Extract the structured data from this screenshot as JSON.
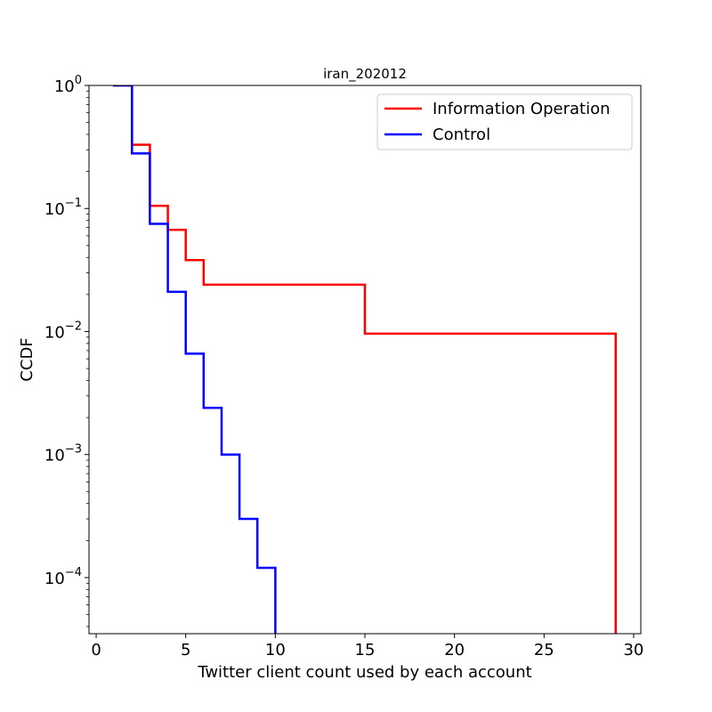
{
  "chart_data": {
    "type": "line",
    "title": "iran_202012",
    "xlabel": "Twitter client count used by each account",
    "ylabel": "CCDF",
    "yscale": "log",
    "xlim": [
      -0.4,
      30.4
    ],
    "ylim": [
      3.5e-05,
      1
    ],
    "xticks": [
      {
        "value": 0,
        "label": "0"
      },
      {
        "value": 5,
        "label": "5"
      },
      {
        "value": 10,
        "label": "10"
      },
      {
        "value": 15,
        "label": "15"
      },
      {
        "value": 20,
        "label": "20"
      },
      {
        "value": 25,
        "label": "25"
      },
      {
        "value": 30,
        "label": "30"
      }
    ],
    "yticks": [
      {
        "value": 1,
        "base": "10",
        "exp": "0"
      },
      {
        "value": 0.1,
        "base": "10",
        "exp": "−1"
      },
      {
        "value": 0.01,
        "base": "10",
        "exp": "−2"
      },
      {
        "value": 0.001,
        "base": "10",
        "exp": "−3"
      },
      {
        "value": 0.0001,
        "base": "10",
        "exp": "−4"
      }
    ],
    "legend": "top-right",
    "grid": false,
    "series": [
      {
        "name": "Information Operation",
        "color": "#ff0000",
        "x": [
          1,
          2,
          3,
          4,
          5,
          6,
          15,
          29
        ],
        "y": [
          1,
          0.33,
          0.105,
          0.067,
          0.038,
          0.024,
          0.0096,
          0.0048
        ]
      },
      {
        "name": "Control",
        "color": "#0000ff",
        "x": [
          1,
          2,
          3,
          4,
          5,
          6,
          7,
          8,
          9,
          10
        ],
        "y": [
          1,
          0.28,
          0.075,
          0.021,
          0.0066,
          0.0024,
          0.001,
          0.0003,
          0.00012,
          6e-05
        ]
      }
    ]
  }
}
